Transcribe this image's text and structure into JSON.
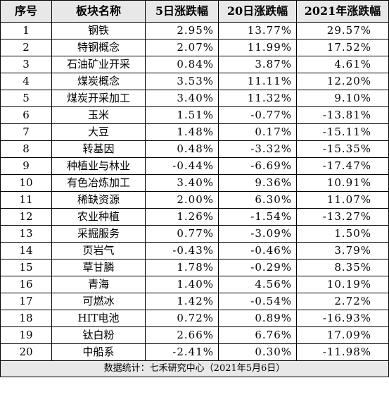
{
  "headers": [
    "序号",
    "板块名称",
    "5日涨跌幅",
    "20日涨跌幅",
    "2021年涨跌幅"
  ],
  "rows": [
    {
      "idx": "1",
      "name": "钢铁",
      "d5": "2.95%",
      "d20": "13.77%",
      "ytd": "29.57%"
    },
    {
      "idx": "2",
      "name": "特钢概念",
      "d5": "2.07%",
      "d20": "11.99%",
      "ytd": "17.52%"
    },
    {
      "idx": "3",
      "name": "石油矿业开采",
      "d5": "0.84%",
      "d20": "3.87%",
      "ytd": "4.61%"
    },
    {
      "idx": "4",
      "name": "煤炭概念",
      "d5": "3.53%",
      "d20": "11.11%",
      "ytd": "12.20%"
    },
    {
      "idx": "5",
      "name": "煤炭开采加工",
      "d5": "3.40%",
      "d20": "11.32%",
      "ytd": "9.10%"
    },
    {
      "idx": "6",
      "name": "玉米",
      "d5": "1.51%",
      "d20": "-0.77%",
      "ytd": "-13.81%"
    },
    {
      "idx": "7",
      "name": "大豆",
      "d5": "1.48%",
      "d20": "0.17%",
      "ytd": "-15.11%"
    },
    {
      "idx": "8",
      "name": "转基因",
      "d5": "0.48%",
      "d20": "-3.32%",
      "ytd": "-15.35%"
    },
    {
      "idx": "9",
      "name": "种植业与林业",
      "d5": "-0.44%",
      "d20": "-6.69%",
      "ytd": "-17.47%"
    },
    {
      "idx": "10",
      "name": "有色冶炼加工",
      "d5": "3.40%",
      "d20": "9.36%",
      "ytd": "10.91%"
    },
    {
      "idx": "11",
      "name": "稀缺资源",
      "d5": "2.00%",
      "d20": "6.30%",
      "ytd": "11.07%"
    },
    {
      "idx": "12",
      "name": "农业种植",
      "d5": "1.26%",
      "d20": "-1.54%",
      "ytd": "-13.27%"
    },
    {
      "idx": "13",
      "name": "采掘服务",
      "d5": "0.77%",
      "d20": "-3.09%",
      "ytd": "1.50%"
    },
    {
      "idx": "14",
      "name": "页岩气",
      "d5": "-0.43%",
      "d20": "-0.46%",
      "ytd": "3.79%"
    },
    {
      "idx": "15",
      "name": "草甘膦",
      "d5": "1.78%",
      "d20": "-0.29%",
      "ytd": "8.35%"
    },
    {
      "idx": "16",
      "name": "青海",
      "d5": "1.40%",
      "d20": "4.56%",
      "ytd": "10.19%"
    },
    {
      "idx": "17",
      "name": "可燃冰",
      "d5": "1.42%",
      "d20": "-0.54%",
      "ytd": "2.72%"
    },
    {
      "idx": "18",
      "name": "HIT电池",
      "d5": "0.72%",
      "d20": "0.89%",
      "ytd": "-16.93%"
    },
    {
      "idx": "19",
      "name": "钛白粉",
      "d5": "2.66%",
      "d20": "6.76%",
      "ytd": "17.09%"
    },
    {
      "idx": "20",
      "name": "中船系",
      "d5": "-2.41%",
      "d20": "0.30%",
      "ytd": "-11.98%"
    }
  ],
  "footer": "数据统计：七禾研究中心（2021年5月6日）",
  "colors": {
    "header_bg": "#e8e8e8",
    "border": "#000000"
  }
}
